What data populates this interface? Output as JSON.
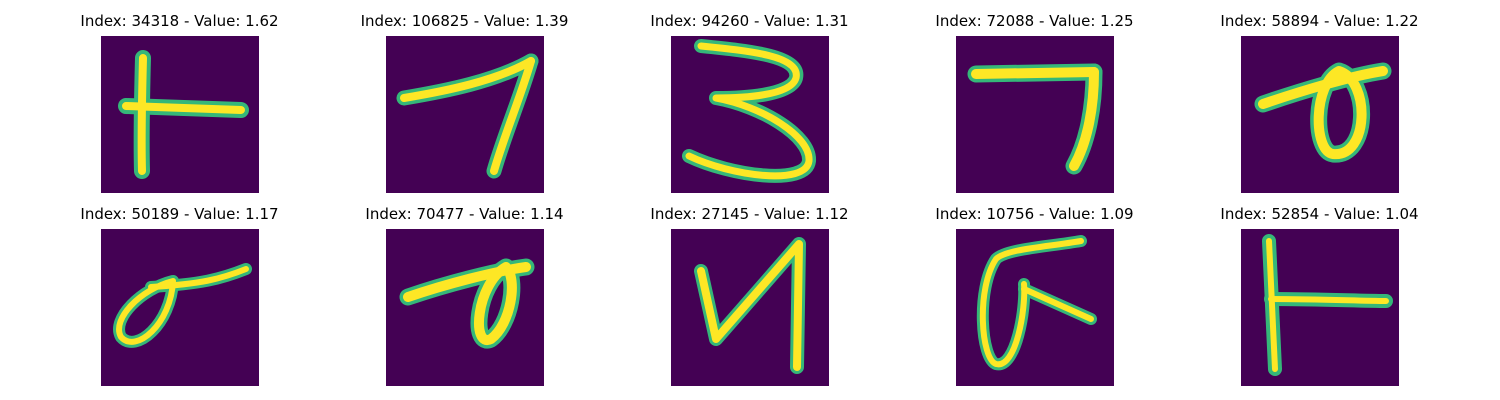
{
  "figure": {
    "colormap": {
      "background": "#440154",
      "mid": "#35b779",
      "high": "#fde725"
    },
    "panels": [
      {
        "title": "Index: 34318 - Value: 1.62"
      },
      {
        "title": "Index: 106825 - Value: 1.39"
      },
      {
        "title": "Index: 94260 - Value: 1.31"
      },
      {
        "title": "Index: 72088 - Value: 1.25"
      },
      {
        "title": "Index: 58894 - Value: 1.22"
      },
      {
        "title": "Index: 50189 - Value: 1.17"
      },
      {
        "title": "Index: 70477 - Value: 1.14"
      },
      {
        "title": "Index: 27145 - Value: 1.12"
      },
      {
        "title": "Index: 10756 - Value: 1.09"
      },
      {
        "title": "Index: 52854 - Value: 1.04"
      }
    ]
  }
}
